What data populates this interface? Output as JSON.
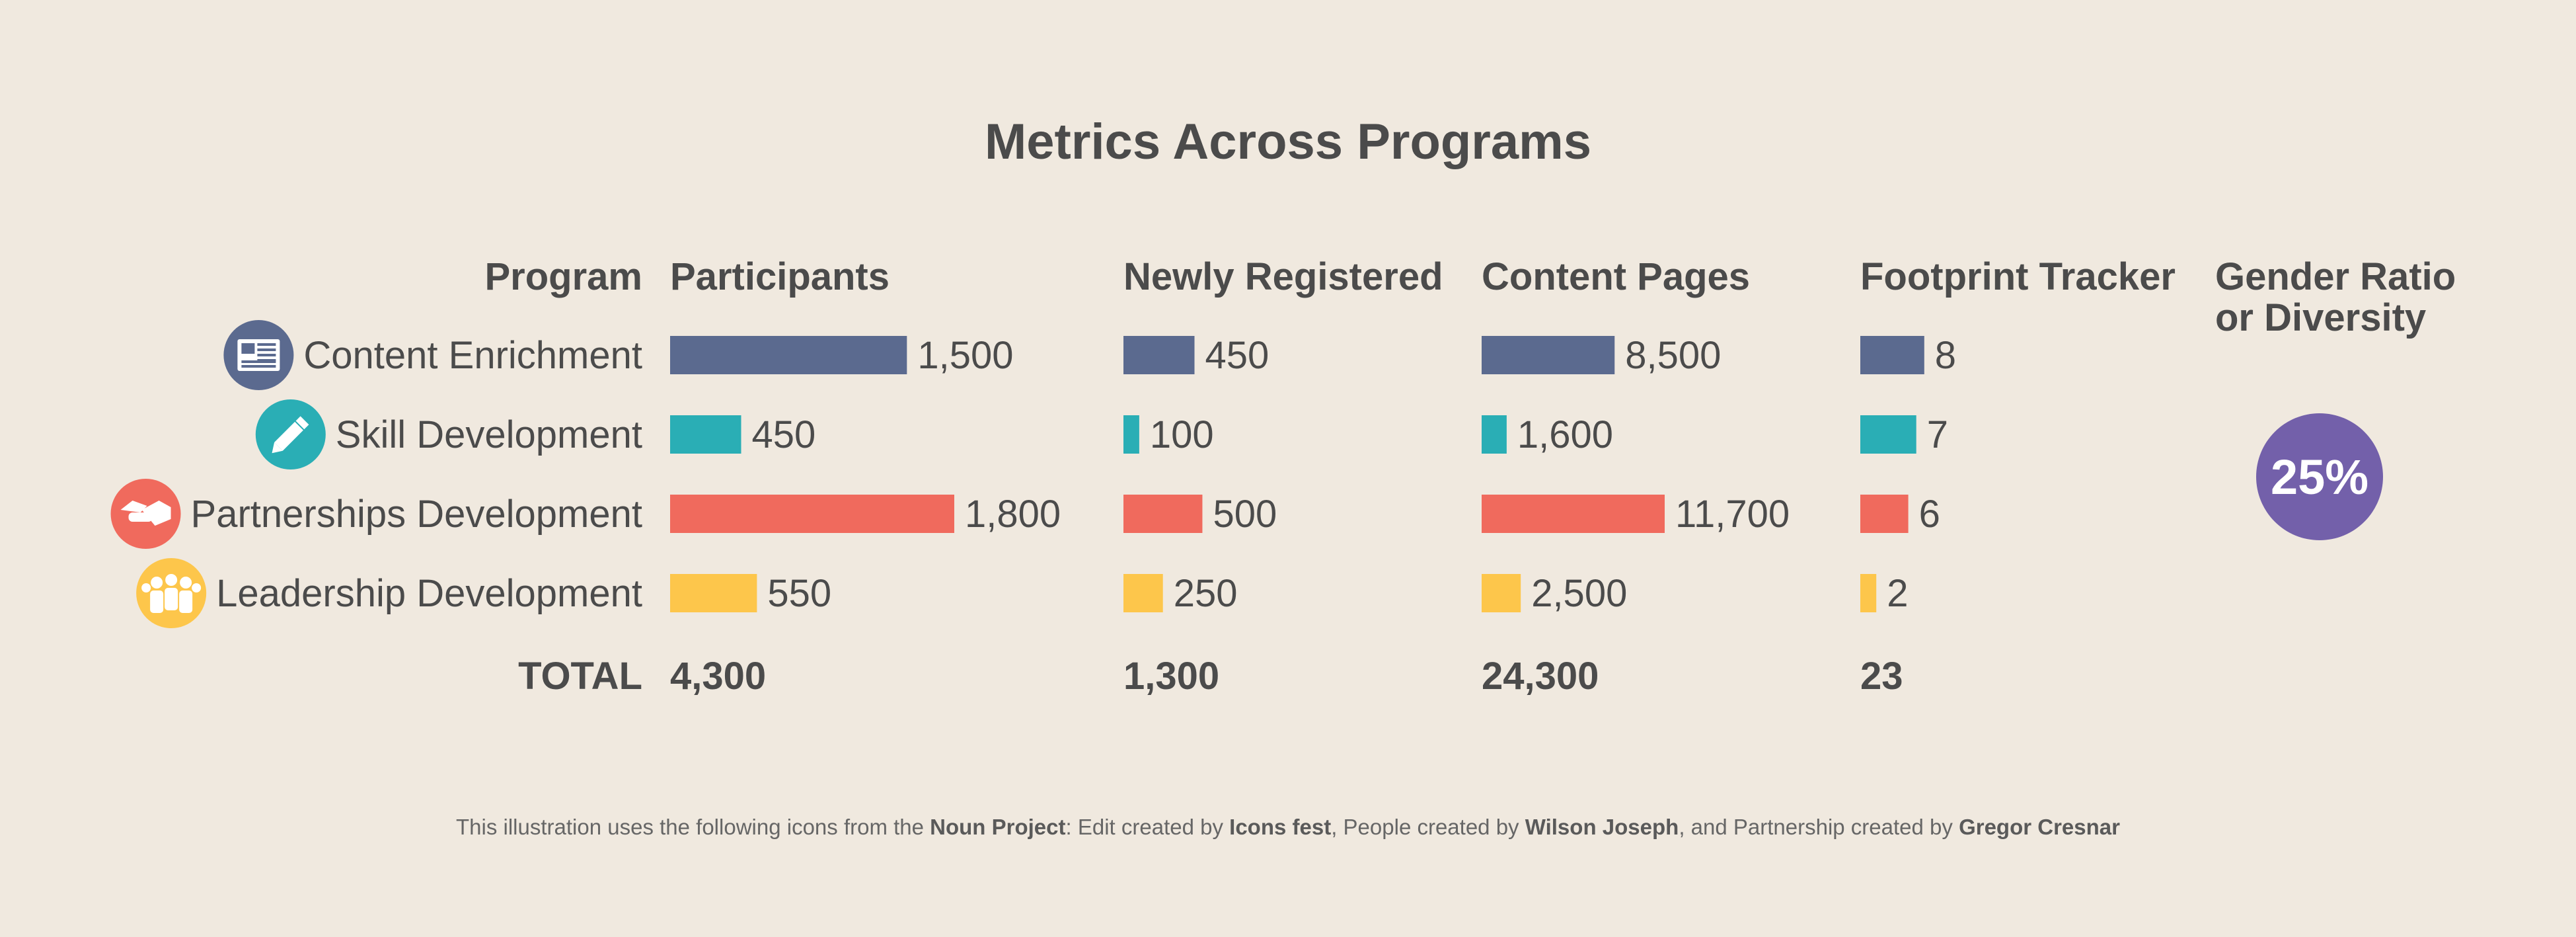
{
  "chart_data": {
    "type": "bar",
    "title": "Metrics Across Programs",
    "row_header": "Program",
    "categories": [
      "Content Enrichment",
      "Skill Development",
      "Partnerships Development",
      "Leadership Development"
    ],
    "category_icons": [
      "newspaper-icon",
      "pencil-icon",
      "handshake-icon",
      "people-icon"
    ],
    "colors": [
      "#5b6a8f",
      "#2aaeb5",
      "#f06a5d",
      "#fdc64b"
    ],
    "series": [
      {
        "name": "Participants",
        "values": [
          1500,
          450,
          1800,
          550
        ],
        "value_labels": [
          "1,500",
          "450",
          "1,800",
          "550"
        ],
        "total": "4,300",
        "xmax": 1800
      },
      {
        "name": "Newly Registered",
        "values": [
          450,
          100,
          500,
          250
        ],
        "value_labels": [
          "450",
          "100",
          "500",
          "250"
        ],
        "total": "1,300",
        "xmax": 1800
      },
      {
        "name": "Content Pages",
        "values": [
          8500,
          1600,
          11700,
          2500
        ],
        "value_labels": [
          "8,500",
          "1,600",
          "11,700",
          "2,500"
        ],
        "total": "24,300",
        "xmax": 11700
      },
      {
        "name": "Footprint Tracker",
        "values": [
          8,
          7,
          6,
          2
        ],
        "value_labels": [
          "8",
          "7",
          "6",
          "2"
        ],
        "total": "23",
        "xmax": 20
      }
    ],
    "total_label": "TOTAL",
    "gender": {
      "header_line1": "Gender Ratio",
      "header_line2": "or Diversity",
      "value_percent": 25,
      "label": "25%",
      "color": "#7360aa"
    }
  },
  "footnote": {
    "part1": "This illustration uses the following icons from the ",
    "noun_project": "Noun Project",
    "part2": ": Edit created by ",
    "author_edit": "Icons fest",
    "part3": ", People created by ",
    "author_people": "Wilson Joseph",
    "part4": ", and Partnership created by ",
    "author_partnership": "Gregor Cresnar"
  }
}
